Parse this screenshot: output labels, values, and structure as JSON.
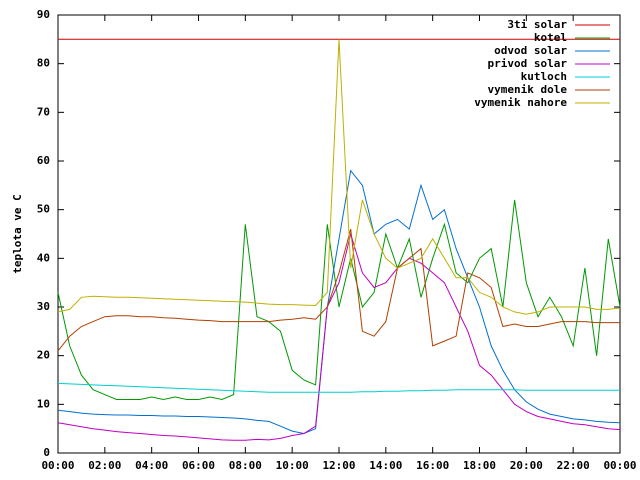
{
  "chart_data": {
    "type": "line",
    "ylabel": "teplota ve C",
    "x": [
      0,
      0.5,
      1,
      1.5,
      2,
      2.5,
      3,
      3.5,
      4,
      4.5,
      5,
      5.5,
      6,
      6.5,
      7,
      7.5,
      8,
      8.5,
      9,
      9.5,
      10,
      10.5,
      11,
      11.5,
      12,
      12.5,
      13,
      13.5,
      14,
      14.5,
      15,
      15.5,
      16,
      16.5,
      17,
      17.5,
      18,
      18.5,
      19,
      19.5,
      20,
      20.5,
      21,
      21.5,
      22,
      22.5,
      23,
      23.5,
      24
    ],
    "xlim": [
      0,
      24
    ],
    "xticks": [
      {
        "value": 0,
        "label": "00:00"
      },
      {
        "value": 2,
        "label": "02:00"
      },
      {
        "value": 4,
        "label": "04:00"
      },
      {
        "value": 6,
        "label": "06:00"
      },
      {
        "value": 8,
        "label": "08:00"
      },
      {
        "value": 10,
        "label": "10:00"
      },
      {
        "value": 12,
        "label": "12:00"
      },
      {
        "value": 14,
        "label": "14:00"
      },
      {
        "value": 16,
        "label": "16:00"
      },
      {
        "value": 18,
        "label": "18:00"
      },
      {
        "value": 20,
        "label": "20:00"
      },
      {
        "value": 22,
        "label": "22:00"
      },
      {
        "value": 24,
        "label": "00:00"
      }
    ],
    "ylim": [
      0,
      90
    ],
    "yticks": [
      0,
      10,
      20,
      30,
      40,
      50,
      60,
      70,
      80,
      90
    ],
    "legend": "top-right",
    "series": [
      {
        "name": "3ti solar",
        "color": "#cc0000",
        "values": [
          85,
          85,
          85,
          85,
          85,
          85,
          85,
          85,
          85,
          85,
          85,
          85,
          85,
          85,
          85,
          85,
          85,
          85,
          85,
          85,
          85,
          85,
          85,
          85,
          85,
          85,
          85,
          85,
          85,
          85,
          85,
          85,
          85,
          85,
          85,
          85,
          85,
          85,
          85,
          85,
          85,
          85,
          85,
          85,
          85,
          85,
          85,
          85,
          85
        ]
      },
      {
        "name": "kotel",
        "color": "#009900",
        "values": [
          33,
          22,
          16,
          13,
          12,
          11,
          11,
          11,
          11.5,
          11,
          11.5,
          11,
          11,
          11.5,
          11,
          12,
          47,
          28,
          27,
          25,
          17,
          15,
          14,
          47,
          30,
          40,
          30,
          33,
          45,
          38,
          44,
          32,
          40,
          47,
          37,
          35,
          40,
          42,
          30,
          52,
          35,
          28,
          32,
          28,
          22,
          38,
          20,
          44,
          30
        ]
      },
      {
        "name": "odvod solar",
        "color": "#0070d0",
        "values": [
          8.8,
          8.5,
          8.2,
          8.0,
          7.9,
          7.8,
          7.8,
          7.7,
          7.7,
          7.6,
          7.6,
          7.5,
          7.5,
          7.4,
          7.3,
          7.2,
          7.0,
          6.7,
          6.5,
          5.5,
          4.5,
          4,
          5,
          30,
          44,
          58,
          55,
          45,
          47,
          48,
          46,
          55,
          48,
          50,
          42,
          36,
          30,
          22,
          17,
          13,
          10.5,
          9,
          8,
          7.5,
          7,
          6.8,
          6.5,
          6.3,
          6.2
        ]
      },
      {
        "name": "privod solar",
        "color": "#c000c0",
        "values": [
          6.2,
          5.8,
          5.4,
          5,
          4.7,
          4.4,
          4.2,
          4,
          3.8,
          3.6,
          3.5,
          3.3,
          3.1,
          2.9,
          2.7,
          2.6,
          2.6,
          2.8,
          2.7,
          3,
          3.6,
          4,
          5.5,
          30,
          35,
          45,
          37,
          34,
          35,
          38,
          40,
          39,
          37,
          35,
          30,
          25,
          18,
          16,
          13,
          10,
          8.5,
          7.5,
          7,
          6.5,
          6,
          5.8,
          5.4,
          5,
          4.8
        ]
      },
      {
        "name": "kutloch",
        "color": "#00d0d0",
        "values": [
          14.3,
          14.2,
          14.1,
          14.0,
          13.9,
          13.8,
          13.7,
          13.6,
          13.5,
          13.4,
          13.3,
          13.2,
          13.1,
          13.0,
          12.9,
          12.8,
          12.7,
          12.6,
          12.5,
          12.5,
          12.5,
          12.5,
          12.5,
          12.5,
          12.5,
          12.5,
          12.6,
          12.6,
          12.7,
          12.7,
          12.8,
          12.8,
          12.9,
          12.9,
          13,
          13,
          13,
          13,
          13,
          13,
          12.9,
          12.9,
          12.9,
          12.9,
          12.9,
          12.9,
          12.9,
          12.9,
          12.9
        ]
      },
      {
        "name": "vymenik dole",
        "color": "#b04000",
        "values": [
          21,
          24,
          26,
          27,
          28,
          28.2,
          28.2,
          28,
          28,
          27.8,
          27.7,
          27.5,
          27.3,
          27.2,
          27,
          27,
          27,
          27,
          27,
          27.3,
          27.5,
          27.8,
          27.5,
          30,
          37,
          46,
          25,
          24,
          27,
          38,
          40,
          42,
          22,
          23,
          24,
          37,
          36,
          34,
          26,
          26.5,
          26,
          26,
          26.5,
          27,
          27,
          27,
          26.8,
          26.8,
          26.8
        ]
      },
      {
        "name": "vymenik nahore",
        "color": "#c0b000",
        "values": [
          29,
          29.5,
          32,
          32.2,
          32.1,
          32,
          32,
          31.9,
          31.8,
          31.7,
          31.6,
          31.5,
          31.4,
          31.3,
          31.2,
          31.1,
          31,
          30.8,
          30.6,
          30.5,
          30.5,
          30.4,
          30.3,
          33,
          85,
          38,
          52,
          45,
          40,
          38,
          39,
          40,
          44,
          40,
          36,
          36,
          33,
          32,
          30,
          29,
          28.5,
          29,
          30,
          30,
          30,
          30,
          29.5,
          29.5,
          29.8
        ]
      }
    ]
  }
}
